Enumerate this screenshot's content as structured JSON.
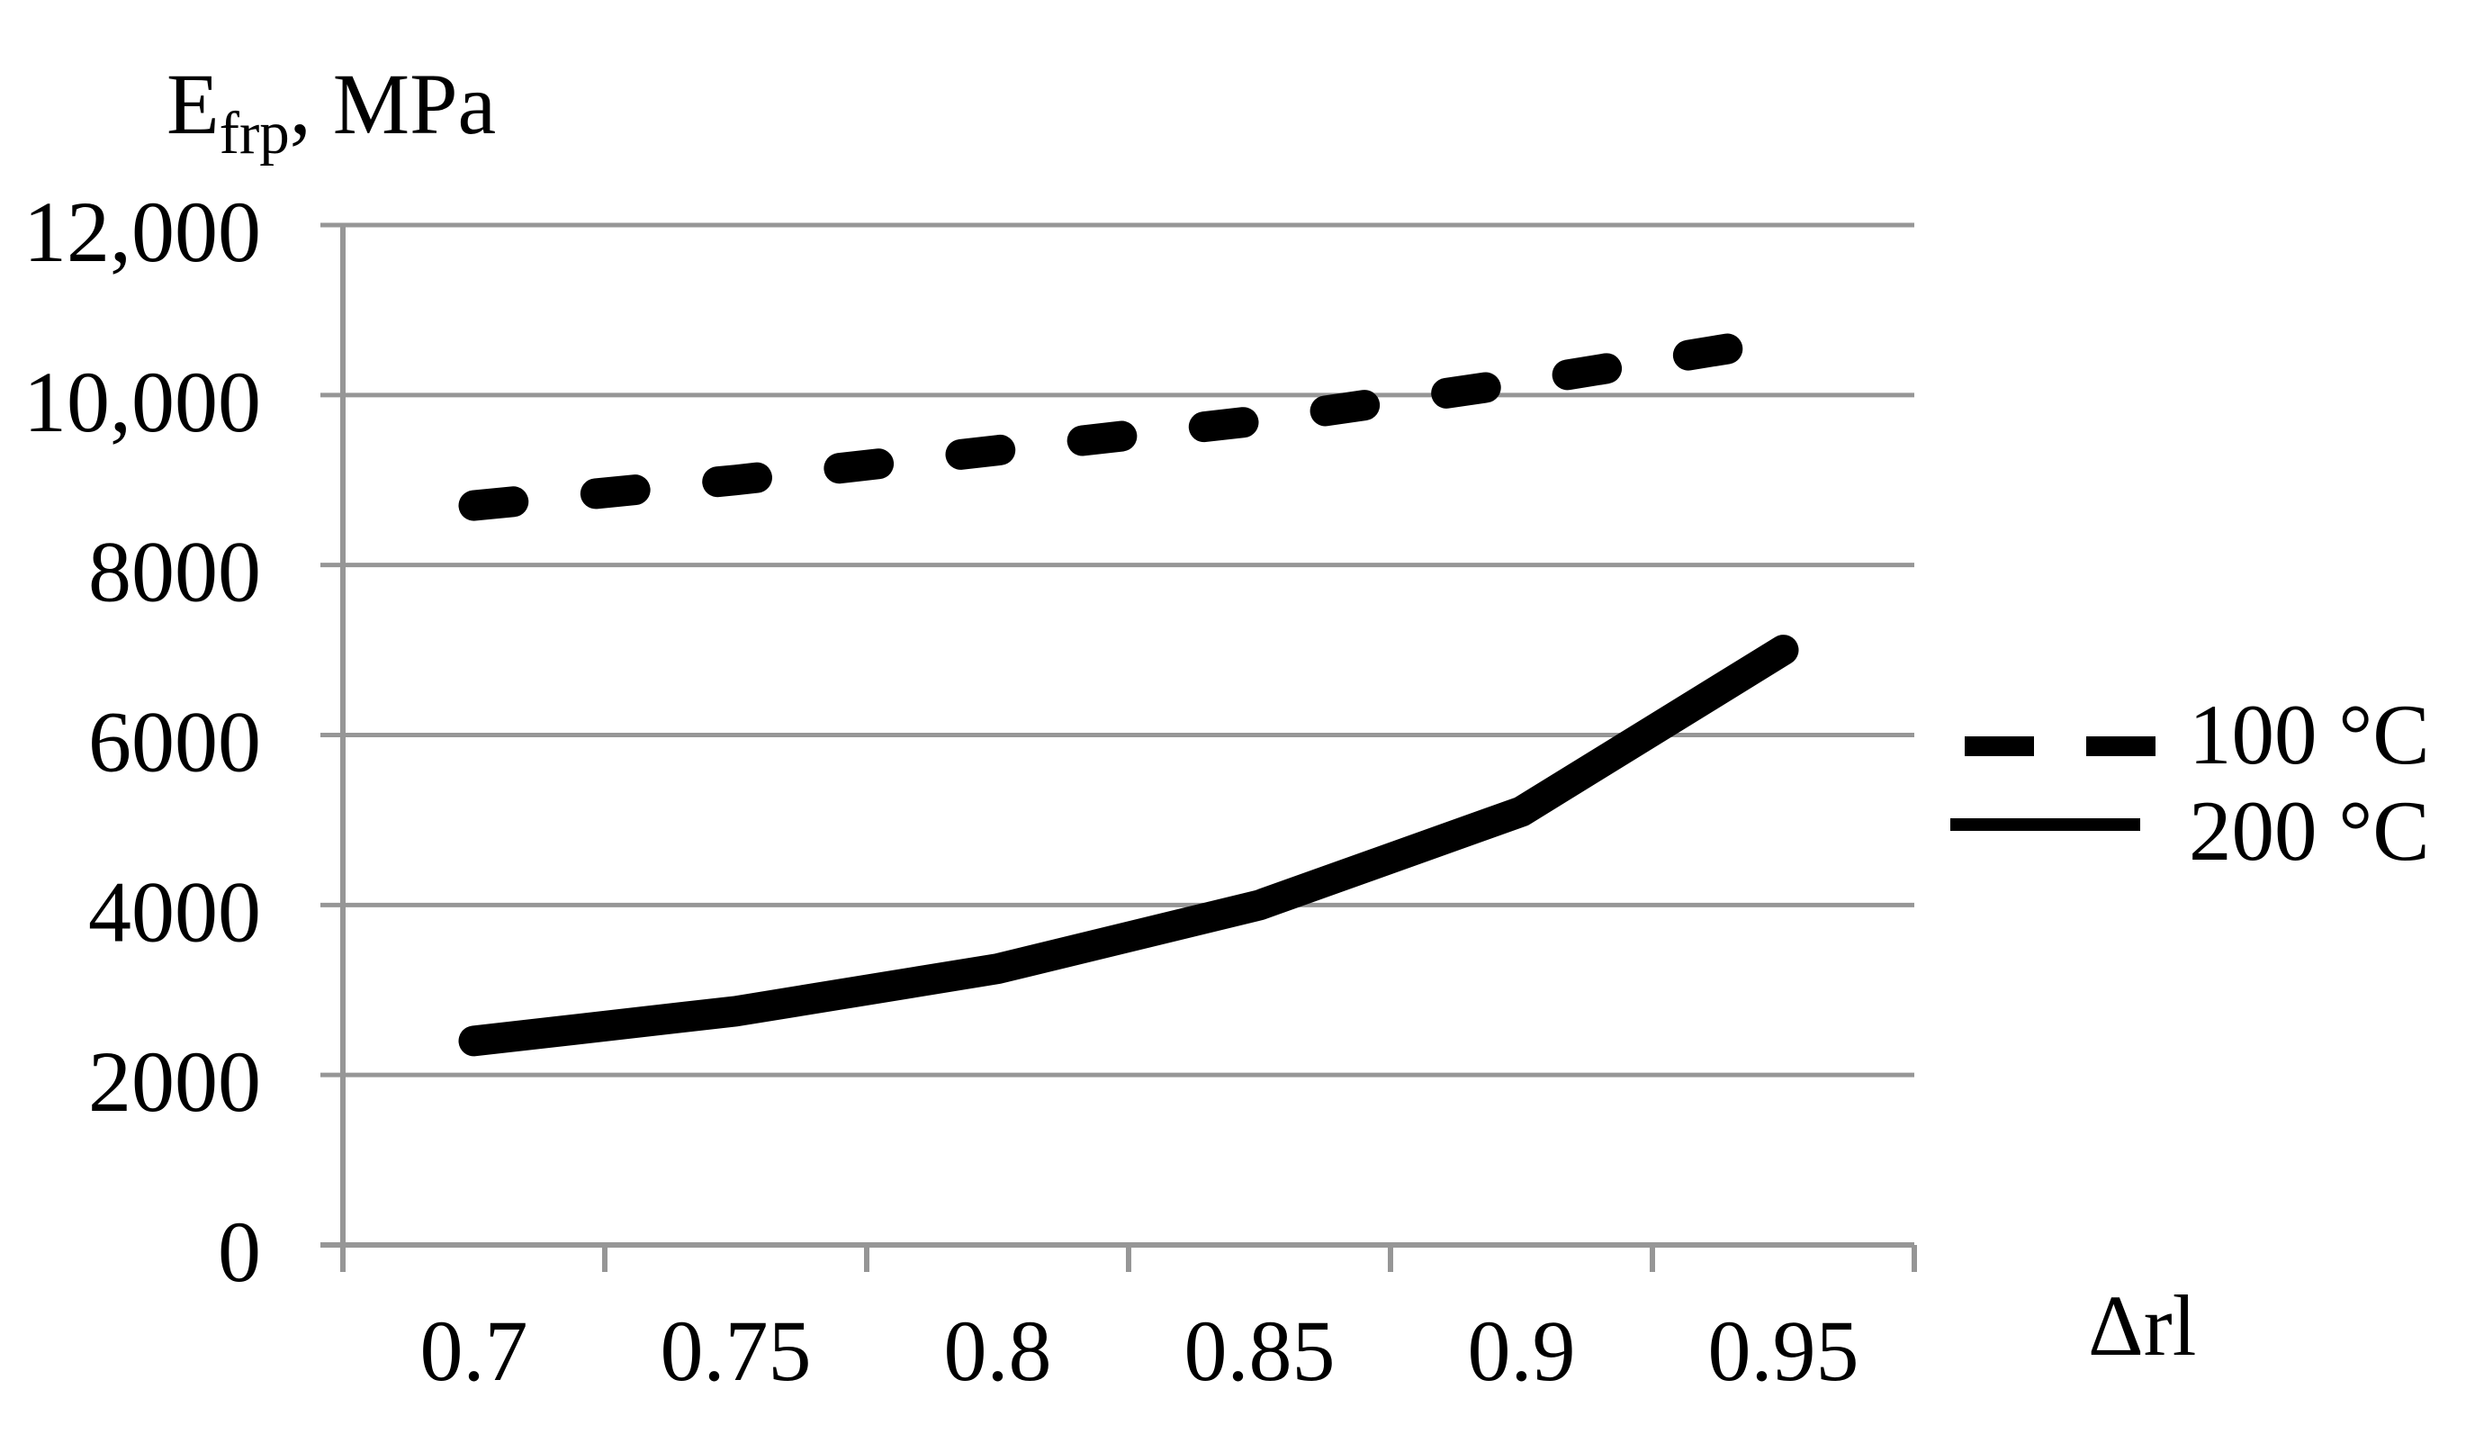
{
  "chart_data": {
    "type": "line",
    "title": {
      "main": "E",
      "sub": "frp",
      "rest": ", MPa"
    },
    "xlabel": "Δrl",
    "ylabel": "",
    "x_categories": [
      "0.7",
      "0.75",
      "0.8",
      "0.85",
      "0.9",
      "0.95"
    ],
    "y_ticks": [
      {
        "value": 0,
        "label": "0"
      },
      {
        "value": 2000,
        "label": "2000"
      },
      {
        "value": 4000,
        "label": "4000"
      },
      {
        "value": 6000,
        "label": "6000"
      },
      {
        "value": 8000,
        "label": "8000"
      },
      {
        "value": 10000,
        "label": "10,000"
      },
      {
        "value": 12000,
        "label": "12,000"
      }
    ],
    "ylim": [
      0,
      12000
    ],
    "grid": true,
    "legend_position": "right",
    "series": [
      {
        "name": "100 °C",
        "style": "dashed",
        "values": [
          8700,
          9000,
          9350,
          9700,
          10150,
          10650
        ]
      },
      {
        "name": "200 °C",
        "style": "solid",
        "values": [
          2400,
          2750,
          3250,
          4000,
          5100,
          7000
        ]
      }
    ],
    "colors": {
      "line": "#000000",
      "grid": "#969696",
      "text": "#000000",
      "background": "#ffffff"
    }
  }
}
